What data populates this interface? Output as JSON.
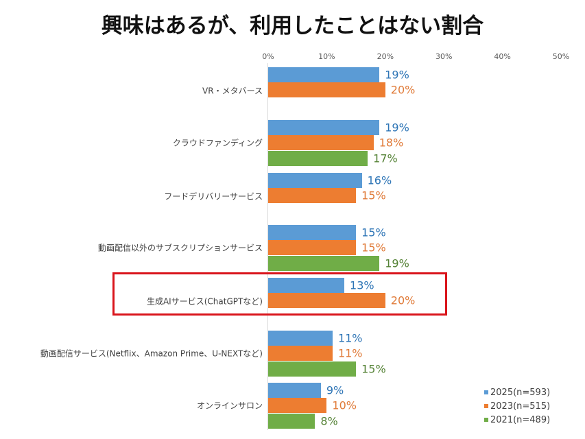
{
  "title": "興味はあるが、利用したことはない割合",
  "colors": {
    "2025": "#5b9bd5",
    "2023": "#ed7d31",
    "2021": "#70ad47",
    "label_2025": "#2e75b6",
    "label_2023": "#e07b39",
    "label_2021": "#548235",
    "highlight": "#d9141b"
  },
  "axis": {
    "ticks": [
      "0%",
      "10%",
      "20%",
      "30%",
      "40%",
      "50%"
    ]
  },
  "legend": [
    {
      "key": "2025",
      "label": "2025(n=593)"
    },
    {
      "key": "2023",
      "label": "2023(n=515)"
    },
    {
      "key": "2021",
      "label": "2021(n=489)"
    }
  ],
  "chart_data": {
    "type": "bar",
    "orientation": "horizontal",
    "title": "興味はあるが、利用したことはない割合",
    "xlabel": "",
    "ylabel": "",
    "xlim": [
      0,
      50
    ],
    "x_ticks": [
      "0%",
      "10%",
      "20%",
      "30%",
      "40%",
      "50%"
    ],
    "grid": false,
    "legend_position": "bottom-right",
    "categories": [
      "VR・メタバース",
      "クラウドファンディング",
      "フードデリバリーサービス",
      "動画配信以外のサブスクリプションサービス",
      "生成AIサービス(ChatGPTなど)",
      "動画配信サービス(Netflix、Amazon Prime、U-NEXTなど)",
      "オンラインサロン"
    ],
    "series": [
      {
        "name": "2025(n=593)",
        "values": [
          19,
          19,
          16,
          15,
          13,
          11,
          9
        ]
      },
      {
        "name": "2023(n=515)",
        "values": [
          20,
          18,
          15,
          15,
          20,
          11,
          10
        ]
      },
      {
        "name": "2021(n=489)",
        "values": [
          null,
          17,
          null,
          19,
          null,
          15,
          8
        ]
      }
    ],
    "value_labels": [
      [
        "19%",
        "20%",
        null
      ],
      [
        "19%",
        "18%",
        "17%"
      ],
      [
        "16%",
        "15%",
        null
      ],
      [
        "15%",
        "15%",
        "19%"
      ],
      [
        "13%",
        "20%",
        null
      ],
      [
        "11%",
        "11%",
        "15%"
      ],
      [
        "9%",
        "10%",
        "8%"
      ]
    ],
    "annotations": [
      "Red rectangle highlights 生成AIサービス(ChatGPTなど)"
    ]
  }
}
